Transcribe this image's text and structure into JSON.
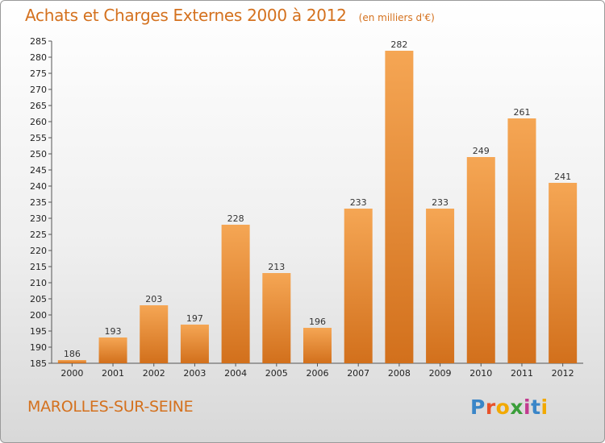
{
  "header": {
    "title": "Achats et Charges Externes 2000 à 2012",
    "subtitle": "(en milliers d'€)"
  },
  "footer": {
    "commune": "MAROLLES-SUR-SEINE",
    "logo_letters": [
      {
        "char": "P",
        "color": "#3a86c8"
      },
      {
        "char": "r",
        "color": "#e8522a"
      },
      {
        "char": "o",
        "color": "#f2a900"
      },
      {
        "char": "x",
        "color": "#3a9e3a"
      },
      {
        "char": "i",
        "color": "#c23b8f"
      },
      {
        "char": "t",
        "color": "#3a86c8"
      },
      {
        "char": "i",
        "color": "#f2a900"
      }
    ]
  },
  "colors": {
    "bar_top": "#f5a654",
    "bar_bottom": "#d2701c",
    "accent": "#d4711e"
  },
  "chart_data": {
    "type": "bar",
    "title": "Achats et Charges Externes 2000 à 2012",
    "subtitle": "(en milliers d'€)",
    "categories": [
      "2000",
      "2001",
      "2002",
      "2003",
      "2004",
      "2005",
      "2006",
      "2007",
      "2008",
      "2009",
      "2010",
      "2011",
      "2012"
    ],
    "values": [
      186,
      193,
      203,
      197,
      228,
      213,
      196,
      233,
      282,
      233,
      249,
      261,
      241
    ],
    "ylim": [
      185,
      285
    ],
    "ytick_step": 5,
    "grid": false,
    "legend": "none"
  }
}
